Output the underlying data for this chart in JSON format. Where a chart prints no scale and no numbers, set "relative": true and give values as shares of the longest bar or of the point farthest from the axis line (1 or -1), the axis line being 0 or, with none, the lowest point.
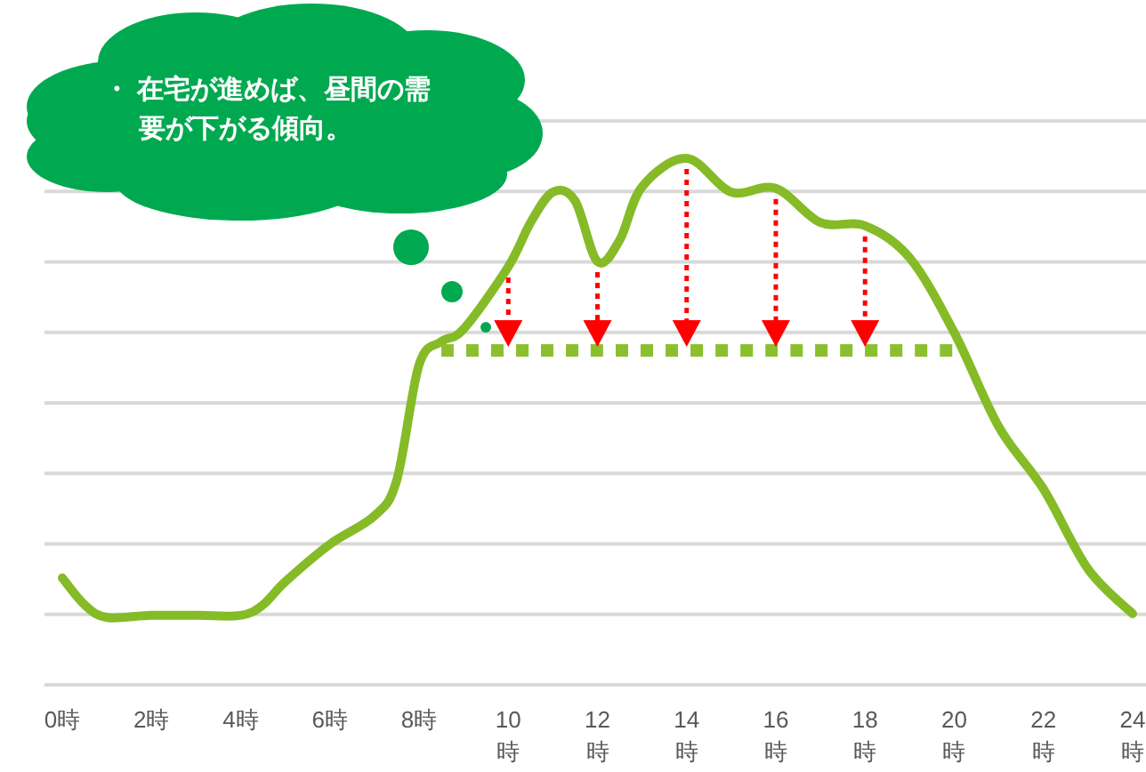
{
  "chart_data": {
    "type": "line",
    "relative": true,
    "grid": "y",
    "xlim": [
      -0.4,
      24.3
    ],
    "xticks": [
      {
        "value": 0,
        "label": "0時"
      },
      {
        "value": 2,
        "label": "2時"
      },
      {
        "value": 4,
        "label": "4時"
      },
      {
        "value": 6,
        "label": "6時"
      },
      {
        "value": 8,
        "label": "8時"
      },
      {
        "value": 10,
        "label": "10時"
      },
      {
        "value": 12,
        "label": "12時"
      },
      {
        "value": 14,
        "label": "14時"
      },
      {
        "value": 16,
        "label": "16時"
      },
      {
        "value": 18,
        "label": "18時"
      },
      {
        "value": 20,
        "label": "20時"
      },
      {
        "value": 22,
        "label": "22時"
      },
      {
        "value": 24,
        "label": "24時"
      }
    ],
    "annotations": [
      "・ 在宅が進めば、昼間の需要が下がる傾向。"
    ],
    "series": [
      {
        "color": "#85bb26",
        "line_style": "solid",
        "x": [
          0,
          0.5,
          1,
          2,
          3,
          4,
          4.5,
          5,
          6,
          7,
          7.5,
          8,
          8.5,
          9,
          10,
          10.5,
          11,
          11.5,
          12,
          12.5,
          13,
          14,
          15,
          16,
          17,
          18,
          19,
          20,
          21,
          22,
          23,
          24
        ],
        "values": [
          0.203,
          0.152,
          0.128,
          0.132,
          0.132,
          0.132,
          0.152,
          0.196,
          0.267,
          0.321,
          0.389,
          0.608,
          0.652,
          0.676,
          0.794,
          0.878,
          0.936,
          0.919,
          0.804,
          0.845,
          0.946,
          1,
          0.936,
          0.943,
          0.878,
          0.872,
          0.811,
          0.669,
          0.49,
          0.372,
          0.22,
          0.135
        ]
      },
      {
        "color": "#8cbf2e",
        "line_style": "dotted",
        "x": [
          8.5,
          20
        ],
        "values": [
          0.635,
          0.635
        ]
      }
    ]
  }
}
